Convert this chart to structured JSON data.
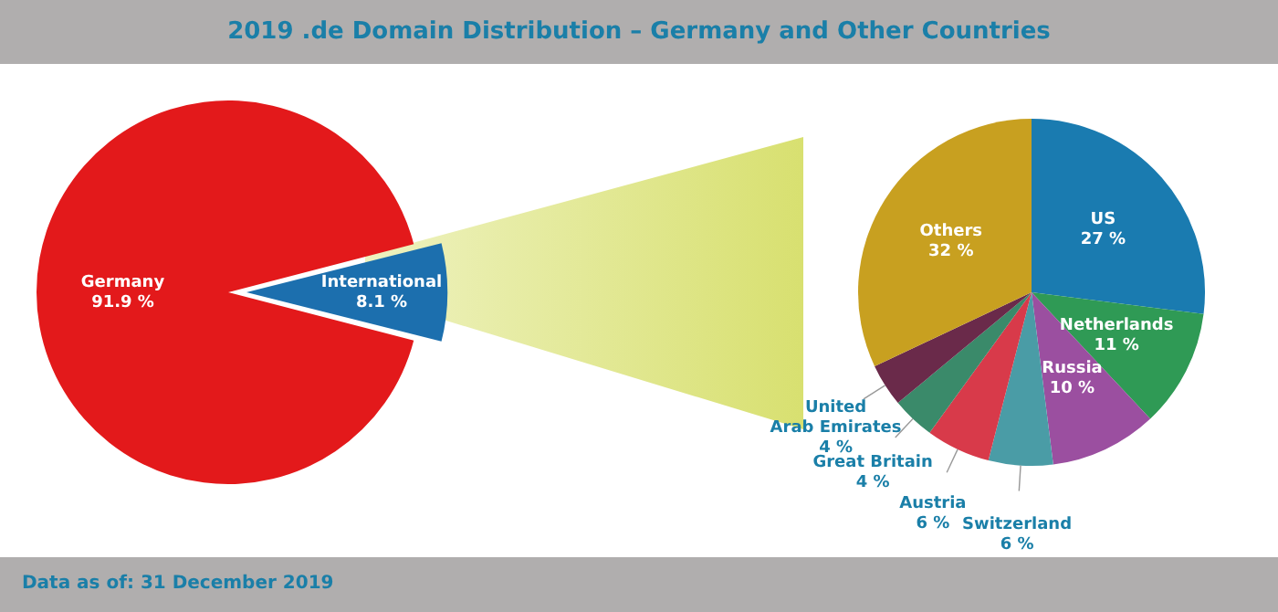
{
  "chart_data": [
    {
      "type": "pie",
      "title": "2019 .de Domain Distribution – Germany and Other Countries",
      "categories": [
        "Germany",
        "International"
      ],
      "values": [
        91.9,
        8.1
      ],
      "colors": [
        "#e3191b",
        "#1c6fae"
      ],
      "value_labels": [
        "91.9 %",
        "8.1 %"
      ],
      "legend": false
    },
    {
      "type": "pie",
      "categories": [
        "US",
        "Netherlands",
        "Russia",
        "Switzerland",
        "Austria",
        "Great Britain",
        "United Arab Emirates",
        "Others"
      ],
      "values": [
        27,
        11,
        10,
        6,
        6,
        4,
        4,
        32
      ],
      "colors": [
        "#1a7bb0",
        "#2f9a55",
        "#9b4fa0",
        "#4a9ca6",
        "#d83a4a",
        "#3a8a6a",
        "#6a2a4a",
        "#c8a020"
      ],
      "value_labels": [
        "27 %",
        "11 %",
        "10 %",
        "6 %",
        "6 %",
        "4 %",
        "4 %",
        "32 %"
      ],
      "legend": false,
      "annotations": [
        "Data as of: 31 December 2019"
      ]
    }
  ]
}
